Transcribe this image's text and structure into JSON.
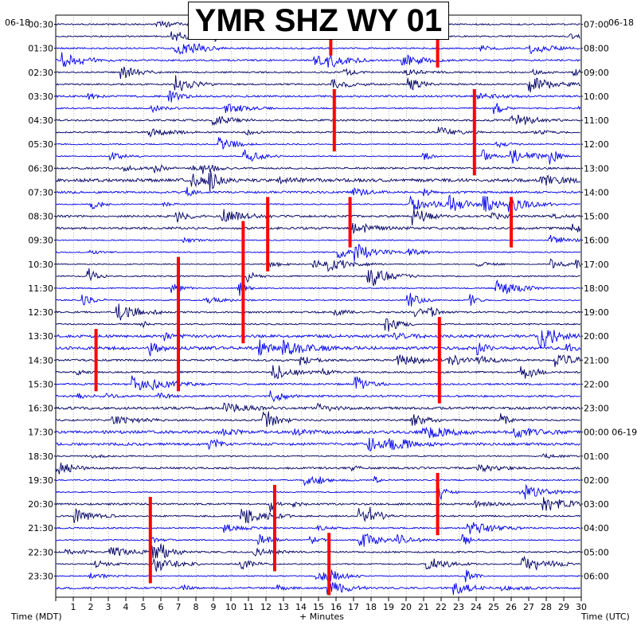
{
  "chart_data": {
    "type": "line",
    "title": "YMR SHZ WY 01",
    "left_date": "06-18",
    "right_date": "06-18",
    "xlabel_left": "Time (MDT)",
    "xlabel_center": "+ Minutes",
    "xlabel_right": "Time (UTC)",
    "x_ticks": [
      "1",
      "2",
      "3",
      "4",
      "5",
      "6",
      "7",
      "8",
      "9",
      "10",
      "11",
      "12",
      "13",
      "14",
      "15",
      "16",
      "17",
      "18",
      "19",
      "20",
      "21",
      "22",
      "23",
      "24",
      "25",
      "26",
      "27",
      "28",
      "29",
      "30"
    ],
    "xlim": [
      0,
      30
    ],
    "left_labels": [
      "00:30",
      "01:30",
      "02:30",
      "03:30",
      "04:30",
      "05:30",
      "06:30",
      "07:30",
      "08:30",
      "09:30",
      "10:30",
      "11:30",
      "12:30",
      "13:30",
      "14:30",
      "15:30",
      "16:30",
      "17:30",
      "18:30",
      "19:30",
      "20:30",
      "21:30",
      "22:30",
      "23:30"
    ],
    "right_labels": [
      "07:00",
      "08:00",
      "09:00",
      "10:00",
      "11:00",
      "12:00",
      "13:00",
      "14:00",
      "15:00",
      "16:00",
      "17:00",
      "18:00",
      "19:00",
      "20:00",
      "21:00",
      "22:00",
      "23:00",
      "00:00 06-19",
      "01:00",
      "02:00",
      "03:00",
      "04:00",
      "05:00",
      "06:00"
    ],
    "num_traces": 48,
    "grid": true,
    "colors": {
      "trace_a": "#000066",
      "trace_b": "#0000ee",
      "clip": "#ff0000",
      "grid": "#8a8a8a"
    },
    "clipped_events": [
      {
        "x": 21.8,
        "trace_start": 0,
        "trace_end": 3
      },
      {
        "x": 15.7,
        "trace_start": 1,
        "trace_end": 2
      },
      {
        "x": 23.9,
        "trace_start": 6,
        "trace_end": 12
      },
      {
        "x": 15.9,
        "trace_start": 6,
        "trace_end": 10
      },
      {
        "x": 12.1,
        "trace_start": 15,
        "trace_end": 20
      },
      {
        "x": 16.8,
        "trace_start": 15,
        "trace_end": 18
      },
      {
        "x": 26.0,
        "trace_start": 15,
        "trace_end": 18
      },
      {
        "x": 10.7,
        "trace_start": 17,
        "trace_end": 26
      },
      {
        "x": 7.0,
        "trace_start": 20,
        "trace_end": 30
      },
      {
        "x": 2.3,
        "trace_start": 26,
        "trace_end": 30
      },
      {
        "x": 21.9,
        "trace_start": 25,
        "trace_end": 31
      },
      {
        "x": 21.8,
        "trace_start": 38,
        "trace_end": 42
      },
      {
        "x": 5.4,
        "trace_start": 40,
        "trace_end": 46
      },
      {
        "x": 12.5,
        "trace_start": 39,
        "trace_end": 45
      },
      {
        "x": 15.6,
        "trace_start": 43,
        "trace_end": 47
      }
    ]
  }
}
